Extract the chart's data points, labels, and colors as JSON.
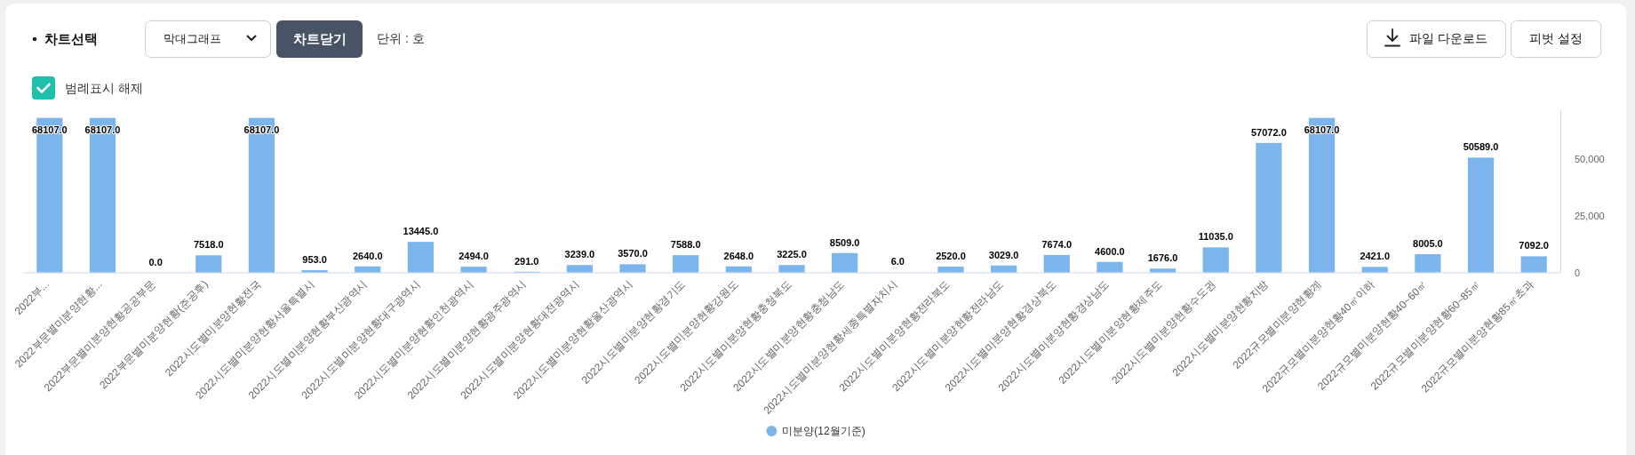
{
  "chart_data": {
    "type": "bar",
    "categories": [
      "2022부...",
      "2022부문별미분양현황...",
      "2022부문별미분양현황공공부문",
      "2022부문별미분양현황(준공후)",
      "2022시도별미분양현황전국",
      "2022시도별미분양현황서울특별시",
      "2022시도별미분양현황부산광역시",
      "2022시도별미분양현황대구광역시",
      "2022시도별미분양현황인천광역시",
      "2022시도별미분양현황광주광역시",
      "2022시도별미분양현황대전광역시",
      "2022시도별미분양현황울산광역시",
      "2022시도별미분양현황경기도",
      "2022시도별미분양현황강원도",
      "2022시도별미분양현황충청북도",
      "2022시도별미분양현황충청남도",
      "2022시도별미분양현황세종특별자치시",
      "2022시도별미분양현황전라북도",
      "2022시도별미분양현황전라남도",
      "2022시도별미분양현황경상북도",
      "2022시도별미분양현황경상남도",
      "2022시도별미분양현황제주도",
      "2022시도별미분양현황수도권",
      "2022시도별미분양현황지방",
      "2022규모별미분양현황계",
      "2022규모별미분양현황40㎡이하",
      "2022규모별미분양현황40~60㎡",
      "2022규모별미분양현황60~85㎡",
      "2022규모별미분양현황85㎡초과"
    ],
    "series": [
      {
        "name": "미분양(12월기준)",
        "color": "#7cb5ec",
        "values": [
          68107,
          68107,
          0,
          7518,
          68107,
          953,
          2640,
          13445,
          2494,
          291,
          3239,
          3570,
          7588,
          2648,
          3225,
          8509,
          6,
          2520,
          3029,
          7674,
          4600,
          1676,
          11035,
          57072,
          68107,
          2421,
          8005,
          50589,
          7092
        ],
        "value_labels": [
          "68107.0",
          "68107.0",
          "0.0",
          "7518.0",
          "68107.0",
          "953.0",
          "2640.0",
          "13445.0",
          "2494.0",
          "291.0",
          "3239.0",
          "3570.0",
          "7588.0",
          "2648.0",
          "3225.0",
          "8509.0",
          "6.0",
          "2520.0",
          "3029.0",
          "7674.0",
          "4600.0",
          "1676.0",
          "11035.0",
          "57072.0",
          "68107.0",
          "2421.0",
          "8005.0",
          "50589.0",
          "7092.0"
        ]
      }
    ],
    "ylim": [
      0,
      71500
    ],
    "yticks": [
      0,
      {
        "value": 25000,
        "label": "25,000"
      },
      {
        "value": 50000,
        "label": "50,000"
      }
    ],
    "legend": "bottom",
    "annotations": [
      "차트선택",
      "막대그래프",
      "차트닫기",
      "단위 : 호",
      "파일 다운로드",
      "피벗 설정",
      "범례표시 해제"
    ]
  }
}
